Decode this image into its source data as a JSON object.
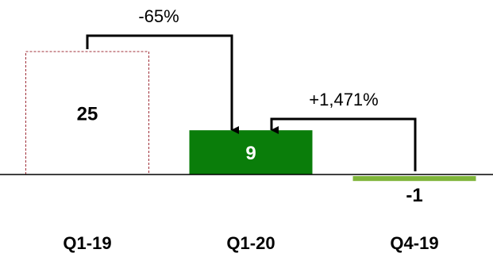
{
  "chart_data": {
    "type": "bar",
    "categories": [
      "Q1-19",
      "Q1-20",
      "Q4-19"
    ],
    "values": [
      25,
      9,
      -1
    ],
    "value_labels": [
      "25",
      "9",
      "-1"
    ],
    "ylim": [
      -4,
      40
    ],
    "grid": false,
    "legend": "none",
    "annotations": [
      {
        "text": "-65%",
        "from": "Q1-19",
        "to": "Q1-20"
      },
      {
        "text": "+1,471%",
        "from": "Q4-19",
        "to": "Q1-20"
      }
    ]
  },
  "colors": {
    "q1_19_outline": "#a0303a",
    "q1_20_fill": "#0a7d0a",
    "q4_19_fill": "#7fb53a",
    "axis": "#000000",
    "arrow": "#000000",
    "q1_20_label": "#ffffff",
    "label": "#000000"
  }
}
